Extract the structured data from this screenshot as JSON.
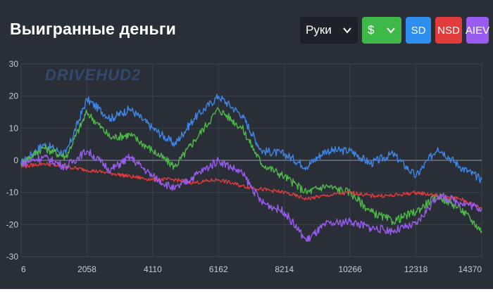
{
  "header": {
    "title": "Выигранные деньги",
    "hands_select": "Руки",
    "currency_select": "$"
  },
  "buttons": [
    {
      "label": "SD",
      "color": "#2f8ff0"
    },
    {
      "label": "NSD",
      "color": "#e23b3b"
    },
    {
      "label": "AIEV",
      "color": "#9a5cf0"
    }
  ],
  "watermark": "DRIVEHUD2",
  "colors": {
    "panel": "#2a2f37",
    "grid": "#3a404a",
    "zero_line": "#6f7580",
    "won": "#3f86e8",
    "sd": "#4fb848",
    "nsd": "#e23b3b",
    "aiev": "#9a5cf0"
  },
  "chart_data": {
    "type": "line",
    "title": "Выигранные деньги",
    "xlabel": "",
    "ylabel": "",
    "xlim": [
      6,
      14370
    ],
    "ylim": [
      -30,
      30
    ],
    "x_ticks": [
      6,
      2058,
      4110,
      6162,
      8214,
      10266,
      12318,
      14370
    ],
    "y_ticks": [
      30,
      20,
      10,
      0,
      -10,
      -20,
      -30
    ],
    "x": [
      6,
      700,
      1400,
      2058,
      2800,
      3400,
      4110,
      4800,
      5400,
      6162,
      6900,
      7500,
      8214,
      8900,
      9500,
      10266,
      10900,
      11600,
      12318,
      13000,
      13700,
      14370
    ],
    "series": [
      {
        "color_key": "won",
        "values": [
          -1,
          5,
          2,
          19,
          13,
          16,
          10,
          5,
          13,
          20,
          14,
          3,
          2,
          -2,
          3,
          3,
          -1,
          2,
          -5,
          4,
          -2,
          -6
        ]
      },
      {
        "color_key": "sd",
        "values": [
          -1,
          4,
          1,
          15,
          7,
          8,
          3,
          -2,
          6,
          16,
          10,
          -1,
          -5,
          -10,
          -8,
          -10,
          -16,
          -19,
          -16,
          -11,
          -15,
          -22
        ]
      },
      {
        "color_key": "nsd",
        "values": [
          -2,
          -1,
          -2,
          -3,
          -4,
          -5,
          -6,
          -6,
          -7,
          -6,
          -8,
          -9,
          -10,
          -12,
          -11,
          -10,
          -11,
          -11,
          -10,
          -11,
          -12,
          -15
        ]
      },
      {
        "color_key": "aiev",
        "values": [
          -1,
          1,
          -2,
          3,
          -3,
          1,
          -5,
          -9,
          -5,
          0,
          -4,
          -13,
          -16,
          -25,
          -20,
          -19,
          -21,
          -22,
          -20,
          -11,
          -13,
          -15
        ]
      }
    ]
  }
}
